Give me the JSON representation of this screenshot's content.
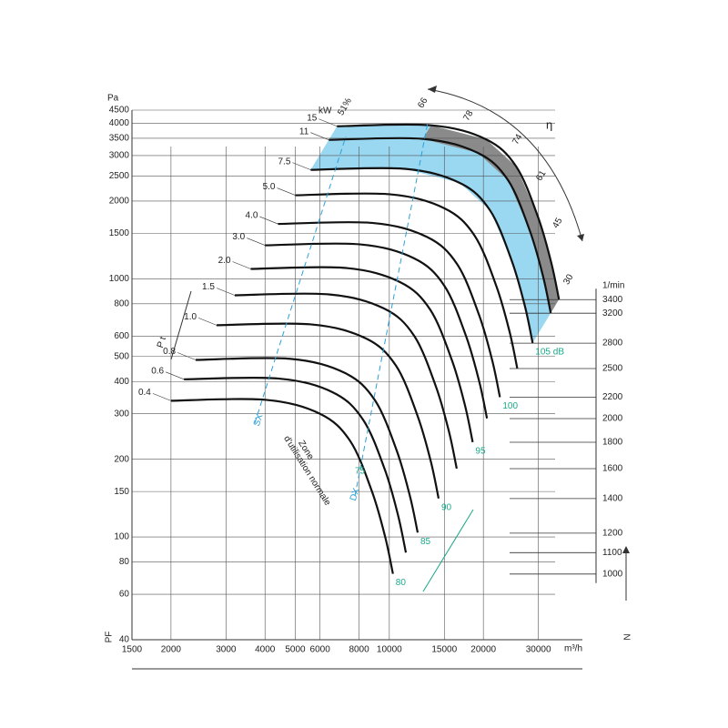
{
  "chart_data": {
    "type": "line",
    "y_unit": "Pa",
    "x_unit": "m³/h",
    "y2_unit": "1/min",
    "y2_symbol": "N",
    "y_symbol": "PF",
    "pt_label": "P t",
    "power_unit": "kW",
    "eta_label": "η",
    "log_x": true,
    "log_y": true,
    "grid": true,
    "xlim": [
      1500,
      41500
    ],
    "ylim": [
      40,
      4500
    ],
    "y2lim": [
      746,
      7917
    ],
    "xticks": [
      1500,
      2000,
      3000,
      4000,
      5000,
      6000,
      8000,
      10000,
      15000,
      20000,
      30000
    ],
    "yticks": [
      40,
      60,
      80,
      100,
      150,
      200,
      300,
      400,
      500,
      600,
      800,
      1000,
      1500,
      2000,
      2500,
      3000,
      3500,
      4000,
      4500
    ],
    "y2ticks": [
      1000,
      1100,
      1200,
      1400,
      1600,
      1800,
      2000,
      2200,
      2500,
      2800,
      3200,
      3400
    ],
    "power_labels": [
      "0.4",
      "0.6",
      "0.8",
      "1.0",
      "1.5",
      "2.0",
      "3.0",
      "4.0",
      "5.0",
      "7.5",
      "11",
      "15"
    ],
    "noise_labels": [
      "80",
      null,
      "85",
      "90",
      null,
      "95",
      null,
      "100",
      null,
      "105 dB",
      null,
      null
    ],
    "efficiency_labels": [
      "51%",
      "66",
      "78",
      "74",
      "61",
      "45",
      "30"
    ],
    "zone_label": [
      "Zone",
      "d'utilisation normale"
    ],
    "side_labels": [
      "SX",
      "DX"
    ],
    "extra_noise_label": "75",
    "series": [
      {
        "color": "#111111",
        "x": [
          2000,
          4000,
          6000,
          7500,
          8800,
          9700,
          10270
        ],
        "values": [
          337,
          340,
          300,
          235,
          150,
          100,
          72
        ]
      },
      {
        "color": "#111111",
        "x": [
          2200,
          4400,
          6600,
          8250,
          9680,
          10670,
          11297
        ],
        "values": [
          408,
          411,
          363,
          284,
          182,
          121,
          87
        ]
      },
      {
        "color": "#111111",
        "x": [
          2400,
          4800,
          7200,
          9000,
          10560,
          11640,
          12324
        ],
        "values": [
          485,
          490,
          432,
          338,
          216,
          144,
          104
        ]
      },
      {
        "color": "#111111",
        "x": [
          2800,
          5600,
          8400,
          10500,
          12320,
          13580,
          14378
        ],
        "values": [
          661,
          666,
          588,
          461,
          294,
          196,
          141
        ]
      },
      {
        "color": "#111111",
        "x": [
          3200,
          6400,
          9600,
          12000,
          14080,
          15520,
          16432
        ],
        "values": [
          863,
          870,
          768,
          602,
          384,
          256,
          184
        ]
      },
      {
        "color": "#111111",
        "x": [
          3600,
          7200,
          10800,
          13500,
          15840,
          17460,
          18486
        ],
        "values": [
          1092,
          1102,
          972,
          761,
          486,
          324,
          233
        ]
      },
      {
        "color": "#111111",
        "x": [
          4000,
          8000,
          12000,
          15000,
          17600,
          19400,
          20540
        ],
        "values": [
          1348,
          1360,
          1200,
          940,
          600,
          400,
          288
        ]
      },
      {
        "color": "#111111",
        "x": [
          4400,
          8800,
          13200,
          16500,
          19360,
          21340,
          22594
        ],
        "values": [
          1631,
          1646,
          1452,
          1137,
          726,
          484,
          348
        ]
      },
      {
        "color": "#111111",
        "x": [
          5000,
          10000,
          15000,
          18750,
          22000,
          24250,
          25675
        ],
        "values": [
          2106,
          2125,
          1875,
          1469,
          938,
          625,
          450
        ]
      },
      {
        "color": "#111111",
        "x": [
          5600,
          11200,
          16800,
          21000,
          24640,
          27160,
          28756
        ],
        "values": [
          2642,
          2666,
          2352,
          1842,
          1176,
          784,
          564
        ]
      },
      {
        "color": "#111111",
        "x": [
          6400,
          12800,
          19200,
          24000,
          28160,
          31040,
          32864
        ],
        "values": [
          3451,
          3482,
          3072,
          2406,
          1536,
          1024,
          737
        ]
      },
      {
        "color": "#111111",
        "x": [
          6800,
          13600,
          20400,
          25500,
          29920,
          32980,
          34918
        ],
        "values": [
          3896,
          3930,
          3468,
          2717,
          1734,
          1156,
          832
        ]
      }
    ]
  }
}
